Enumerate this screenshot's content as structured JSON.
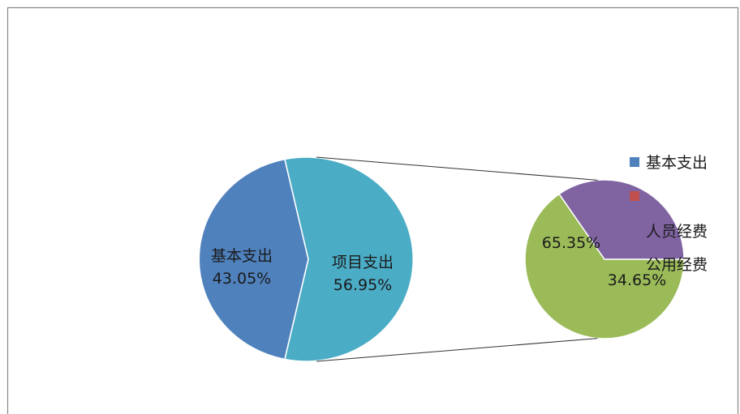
{
  "chart_data": {
    "type": "pie",
    "subtype": "pie-of-pie",
    "main_pie": {
      "slices": [
        {
          "label": "基本支出",
          "value": 43.05,
          "value_label": "43.05%",
          "color": "#4f81bd"
        },
        {
          "label": "项目支出",
          "value": 56.95,
          "value_label": "56.95%",
          "color": "#4bacc6"
        }
      ]
    },
    "secondary_pie": {
      "slices": [
        {
          "label": "人员经费",
          "value": 65.35,
          "value_label": "65.35%",
          "color": "#9bbb59"
        },
        {
          "label": "公用经费",
          "value": 34.65,
          "value_label": "34.65%",
          "color": "#8064a2"
        }
      ]
    },
    "legend": {
      "position": "right",
      "entries": [
        {
          "label": "基本支出",
          "color": "#4f81bd"
        },
        {
          "label": "",
          "color": "#c0504d"
        },
        {
          "label": "人员经费",
          "color": ""
        },
        {
          "label": "公用经费",
          "color": ""
        }
      ]
    },
    "colors": {
      "border": "#888888",
      "connector": "#333333"
    }
  }
}
